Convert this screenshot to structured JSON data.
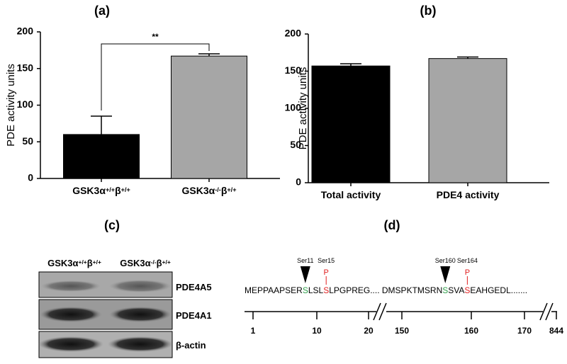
{
  "chart_data": [
    {
      "type": "bar",
      "title": "(a)",
      "y_label": "PDE activity units",
      "categories": [
        "GSK3α+/+β+/+",
        "GSK3α-/-β+/+"
      ],
      "values": [
        60,
        167
      ],
      "errors": [
        25,
        3
      ],
      "colors": [
        "#000000",
        "#a6a6a6"
      ],
      "ylim": [
        0,
        200
      ],
      "yticks": [
        0,
        50,
        100,
        150,
        200
      ],
      "annotation": "**"
    },
    {
      "type": "bar",
      "title": "(b)",
      "y_label": "PDE activity units",
      "categories": [
        "Total activity",
        "PDE4 activity"
      ],
      "values": [
        157,
        167
      ],
      "errors": [
        3,
        2
      ],
      "colors": [
        "#000000",
        "#a6a6a6"
      ],
      "ylim": [
        0,
        200
      ],
      "yticks": [
        0,
        50,
        100,
        150,
        200
      ]
    }
  ],
  "blot": {
    "title": "(c)",
    "columns": [
      "GSK3α+/+β+/+",
      "GSK3α-/-β+/+"
    ],
    "rows": [
      "PDE4A5",
      "PDE4A1",
      "β-actin"
    ]
  },
  "sequence": {
    "title": "(d)",
    "segments": [
      {
        "text": "MEPPAAPSER",
        "color": "#000000"
      },
      {
        "text": "S",
        "color": "#2e9e4a"
      },
      {
        "text": "LSL",
        "color": "#000000"
      },
      {
        "text": "S",
        "color": "#e02020"
      },
      {
        "text": "LPGPREG.... DMSPKTMSRN",
        "color": "#000000"
      },
      {
        "text": "S",
        "color": "#2e9e4a"
      },
      {
        "text": "SVA",
        "color": "#000000"
      },
      {
        "text": "S",
        "color": "#e02020"
      },
      {
        "text": "EAHGEDL.......",
        "color": "#000000"
      }
    ],
    "sites": [
      {
        "label": "Ser11",
        "marker": "triangle"
      },
      {
        "label": "Ser15",
        "marker": "P"
      },
      {
        "label": "Ser160",
        "marker": "triangle"
      },
      {
        "label": "Ser164",
        "marker": "P"
      }
    ],
    "scale": [
      "1",
      "10",
      "20",
      "150",
      "160",
      "170",
      "844"
    ]
  }
}
